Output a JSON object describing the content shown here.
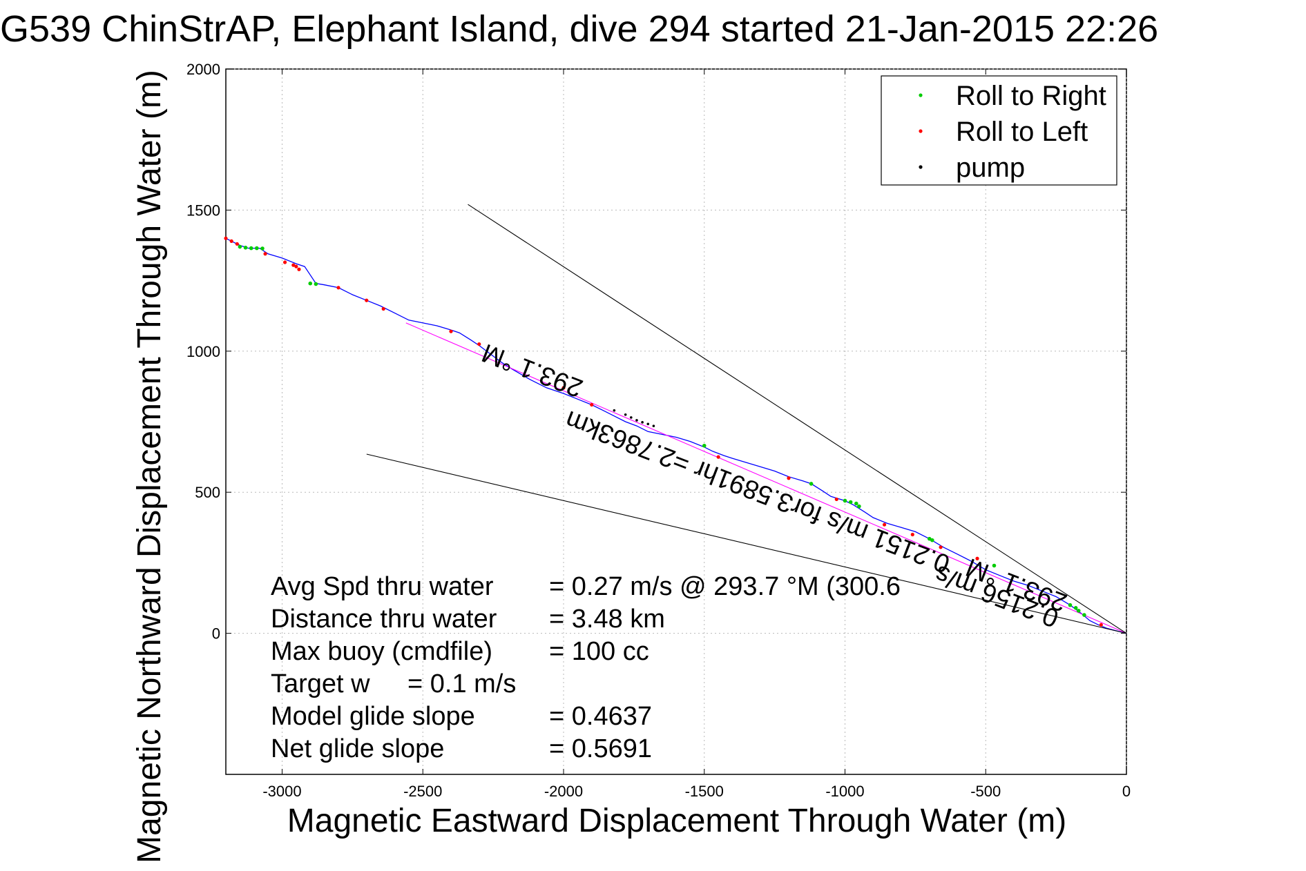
{
  "chart_data": {
    "type": "line",
    "title": "G539 ChinStrAP, Elephant Island, dive 294 started 21-Jan-2015 22:26",
    "xlabel": "Magnetic Eastward Displacement Through Water (m)",
    "ylabel": "Magnetic Northward Displacement Through Water (m)",
    "xlim": [
      -3200,
      0
    ],
    "ylim": [
      -500,
      2000
    ],
    "x_ticks": [
      -3000,
      -2500,
      -2000,
      -1500,
      -1000,
      -500,
      0
    ],
    "y_ticks": [
      0,
      500,
      1000,
      1500,
      2000
    ],
    "x_tick_labels": [
      "-3000",
      "-2500",
      "-2000",
      "-1500",
      "-1000",
      "-500",
      "0"
    ],
    "y_tick_labels": [
      "0",
      "500",
      "1000",
      "1500",
      "2000"
    ],
    "grid": true,
    "legend_position": "top-right",
    "legend": [
      {
        "label": "Roll to Right",
        "color": "#00cc00"
      },
      {
        "label": "Roll to Left",
        "color": "#ff0000"
      },
      {
        "label": "pump",
        "color": "#000000"
      }
    ],
    "series": [
      {
        "color": "#0000ff",
        "x": [
          -3200,
          -3180,
          -3150,
          -3120,
          -3080,
          -3050,
          -3000,
          -2950,
          -2920,
          -2880,
          -2850,
          -2800,
          -2750,
          -2700,
          -2650,
          -2600,
          -2550,
          -2500,
          -2450,
          -2400,
          -2370,
          -2330,
          -2300,
          -2260,
          -2220,
          -2180,
          -2120,
          -2060,
          -2000,
          -1950,
          -1900,
          -1860,
          -1820,
          -1780,
          -1740,
          -1700,
          -1650,
          -1600,
          -1550,
          -1500,
          -1470,
          -1430,
          -1400,
          -1350,
          -1300,
          -1250,
          -1200,
          -1150,
          -1120,
          -1080,
          -1050,
          -1000,
          -970,
          -930,
          -900,
          -850,
          -800,
          -750,
          -700,
          -650,
          -600,
          -550,
          -500,
          -450,
          -400,
          -350,
          -300,
          -250,
          -200,
          -160,
          -130,
          -100,
          -70,
          -40,
          -20,
          0
        ],
        "y": [
          1400,
          1390,
          1375,
          1365,
          1365,
          1345,
          1330,
          1310,
          1300,
          1240,
          1235,
          1225,
          1200,
          1180,
          1160,
          1135,
          1110,
          1100,
          1090,
          1075,
          1065,
          1040,
          1020,
          990,
          960,
          935,
          900,
          870,
          850,
          830,
          810,
          790,
          770,
          750,
          735,
          715,
          705,
          695,
          680,
          660,
          645,
          630,
          620,
          605,
          590,
          575,
          555,
          540,
          530,
          505,
          485,
          470,
          455,
          430,
          410,
          390,
          375,
          360,
          335,
          305,
          280,
          255,
          225,
          205,
          185,
          170,
          150,
          130,
          100,
          70,
          45,
          30,
          18,
          10,
          5,
          0
        ]
      },
      {
        "color": "#ff00ff",
        "x": [
          -2560,
          0
        ],
        "y": [
          1100,
          0
        ]
      },
      {
        "color": "#000000",
        "x": [
          -2340,
          0
        ],
        "y": [
          1520,
          0
        ]
      },
      {
        "color": "#000000",
        "x": [
          -2700,
          0
        ],
        "y": [
          635,
          0
        ]
      }
    ],
    "roll_right_points": {
      "x": [
        -3150,
        -3130,
        -3110,
        -3090,
        -3070,
        -2900,
        -2880,
        -1500,
        -1120,
        -1000,
        -980,
        -960,
        -950,
        -700,
        -690,
        -470,
        -200,
        -180,
        -170,
        -150
      ],
      "y": [
        1370,
        1367,
        1365,
        1365,
        1364,
        1240,
        1238,
        665,
        530,
        470,
        465,
        460,
        450,
        335,
        330,
        240,
        100,
        90,
        80,
        65
      ]
    },
    "roll_left_points": {
      "x": [
        -3200,
        -3180,
        -3160,
        -3060,
        -2990,
        -2960,
        -2950,
        -2940,
        -2800,
        -2700,
        -2640,
        -2400,
        -2300,
        -2000,
        -1900,
        -1450,
        -1200,
        -1030,
        -860,
        -760,
        -660,
        -530,
        -90
      ],
      "y": [
        1400,
        1390,
        1380,
        1345,
        1315,
        1305,
        1300,
        1290,
        1225,
        1180,
        1150,
        1070,
        1025,
        870,
        810,
        625,
        550,
        475,
        385,
        350,
        305,
        265,
        30
      ]
    },
    "pump_points": {
      "x": [
        -1820,
        -1780,
        -1760,
        -1740,
        -1720,
        -1700,
        -1680
      ],
      "y": [
        790,
        775,
        765,
        755,
        748,
        742,
        735
      ]
    },
    "annotations": [
      {
        "text": "293.1 °M",
        "x": -2100,
        "y": 960,
        "angle": 201
      },
      {
        "text": "0.2151 m/s for3.5891hr =2.7863km",
        "x": -1300,
        "y": 530,
        "angle": 201
      },
      {
        "text": "293.1 °M",
        "x": -380,
        "y": 200,
        "angle": 201
      },
      {
        "text": "0.2156 m/s",
        "x": -450,
        "y": 160,
        "angle": 201
      }
    ],
    "stats": [
      {
        "label": "Avg Spd thru water",
        "value": "=  0.27 m/s @ 293.7 °M (300.6"
      },
      {
        "label": "Distance thru water",
        "value": "=  3.48 km"
      },
      {
        "label": "Max buoy (cmdfile)",
        "value": "= 100 cc"
      },
      {
        "label": "Target w",
        "value": "= 0.1 m/s"
      },
      {
        "label": "Model glide slope",
        "value": "= 0.4637"
      },
      {
        "label": "Net glide slope",
        "value": "= 0.5691"
      }
    ]
  }
}
